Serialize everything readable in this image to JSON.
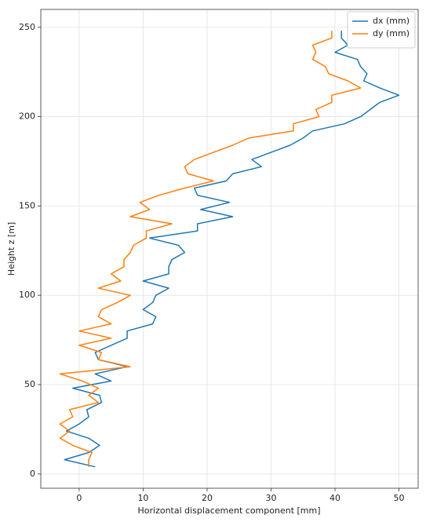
{
  "chart_data": {
    "type": "line",
    "x_label": "Horizontal displacement component [mm]",
    "y_label": "Height z [m]",
    "y": [
      4,
      8,
      12,
      16,
      20,
      24,
      28,
      32,
      36,
      40,
      44,
      48,
      52,
      56,
      60,
      64,
      68,
      72,
      76,
      80,
      84,
      88,
      92,
      96,
      100,
      104,
      108,
      112,
      116,
      120,
      124,
      128,
      132,
      136,
      140,
      144,
      148,
      152,
      156,
      160,
      164,
      168,
      172,
      176,
      180,
      184,
      188,
      192,
      196,
      200,
      204,
      208,
      212,
      216,
      220,
      224,
      228,
      232,
      236,
      240,
      244,
      248
    ],
    "series": [
      {
        "name": "dx (mm)",
        "color": "#1f77b4",
        "values": [
          2.5,
          -2.3,
          1.5,
          3.2,
          1.5,
          -2,
          0,
          1.5,
          1.2,
          3.5,
          3.2,
          -1,
          5,
          2.5,
          7.5,
          3,
          2.5,
          5,
          7.5,
          7.5,
          11.5,
          12,
          10,
          11.5,
          12,
          14,
          10,
          14,
          14,
          14.5,
          16.5,
          15.5,
          11,
          18.5,
          18.5,
          24,
          19,
          23.5,
          18.5,
          18,
          23,
          24,
          28.5,
          27,
          30,
          33,
          35,
          36.5,
          41.5,
          44,
          45.5,
          47,
          50,
          47,
          44.5,
          45,
          44,
          43.5,
          40,
          42,
          41,
          41
        ]
      },
      {
        "name": "dy (mm)",
        "color": "#ff7f0e",
        "values": [
          1.5,
          1.5,
          2,
          -1,
          -3,
          -1.5,
          -3,
          -1,
          -1.5,
          3,
          1.5,
          3,
          0.5,
          -3,
          8,
          3,
          3.5,
          0,
          5,
          0,
          5,
          3,
          3.5,
          6,
          8,
          3,
          6.5,
          5,
          7,
          7,
          8,
          8.5,
          10.5,
          10.5,
          14.5,
          8,
          11,
          9.5,
          12.5,
          16.5,
          21,
          17,
          16.5,
          18,
          21,
          24,
          26.5,
          33.5,
          33.5,
          37.5,
          37,
          39.5,
          39.5,
          44,
          42,
          39,
          38.5,
          36.5,
          37,
          36.5,
          39.5,
          39.5
        ]
      }
    ],
    "xlim": [
      -6,
      53
    ],
    "xticks": [
      0,
      10,
      20,
      30,
      40,
      50
    ],
    "ylim": [
      -8,
      260
    ],
    "yticks": [
      0,
      50,
      100,
      150,
      200,
      250
    ],
    "grid": true,
    "legend": "upper right"
  }
}
